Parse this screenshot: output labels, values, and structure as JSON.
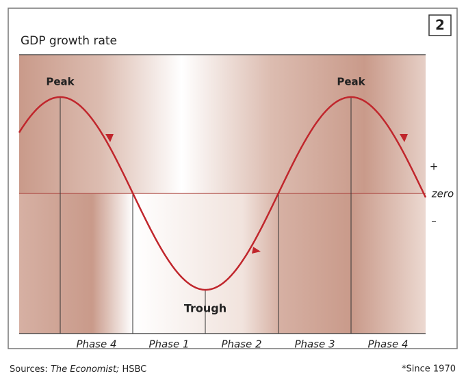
{
  "badge": "2",
  "title": "GDP growth rate",
  "labels": {
    "peak_left": "Peak",
    "peak_right": "Peak",
    "trough": "Trough",
    "plus": "+",
    "zero": "zero",
    "minus": "–"
  },
  "phases": [
    "Phase 4",
    "Phase 1",
    "Phase 2",
    "Phase 3",
    "Phase 4"
  ],
  "footer": {
    "sources_label": "Sources:",
    "sources_italic": "The Economist;",
    "sources_rest": "HSBC",
    "note": "*Since 1970"
  }
}
